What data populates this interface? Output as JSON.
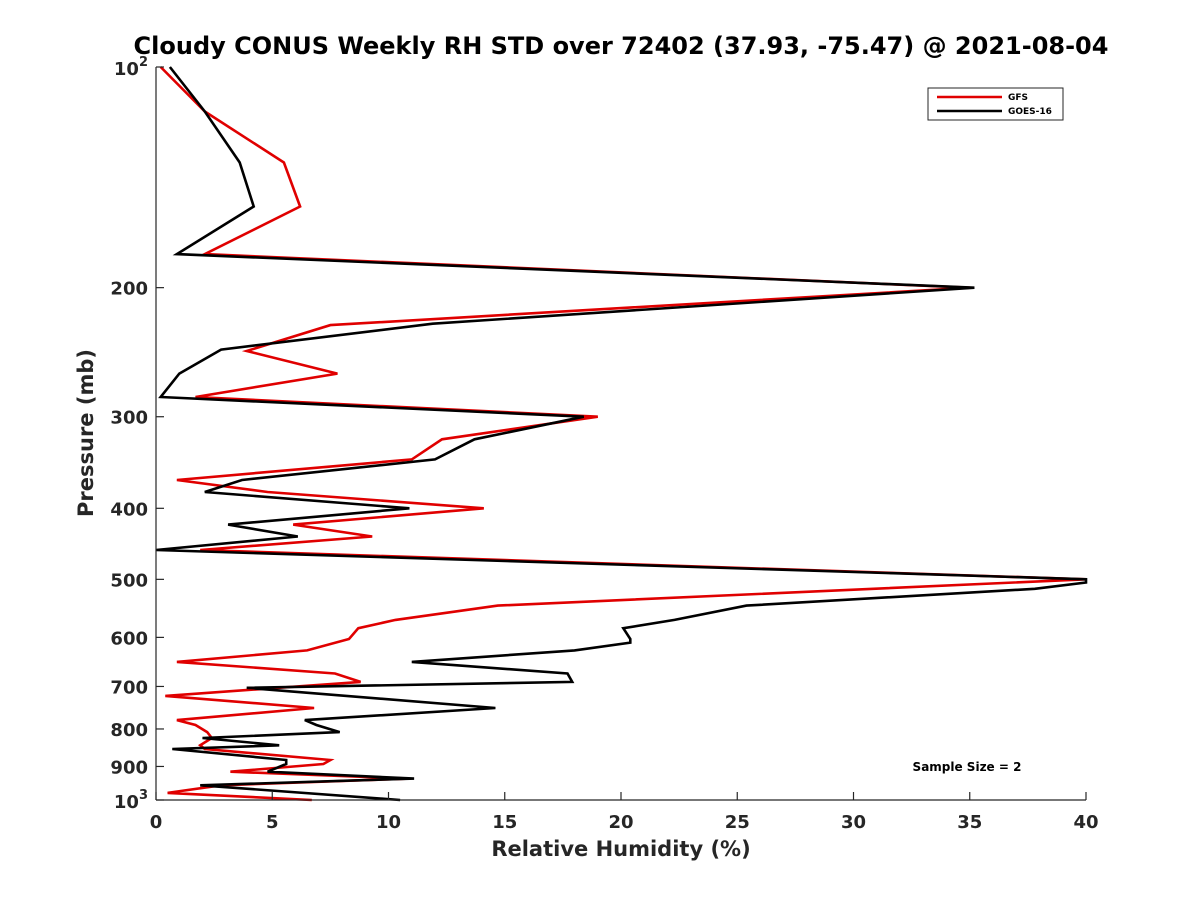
{
  "chart_data": {
    "type": "line",
    "title": "Cloudy CONUS Weekly RH STD over 72402 (37.93, -75.47) @ 2021-08-04",
    "xlabel": "Relative Humidity (%)",
    "ylabel": "Pressure (mb)",
    "xlim": [
      0,
      40
    ],
    "ylim": [
      100,
      1000
    ],
    "yscale": "log",
    "y_reversed": true,
    "grid": false,
    "legend_position": "top-right",
    "x_ticks": [
      0,
      5,
      10,
      15,
      20,
      25,
      30,
      35,
      40
    ],
    "x_tick_labels": [
      "0",
      "5",
      "10",
      "15",
      "20",
      "25",
      "30",
      "35",
      "40"
    ],
    "y_ticks": [
      200,
      300,
      400,
      500,
      600,
      700,
      800,
      900
    ],
    "y_tick_labels": [
      "200",
      "300",
      "400",
      "500",
      "600",
      "700",
      "800",
      "900"
    ],
    "y_power_ticks": [
      {
        "value": 100,
        "base": "10",
        "exp": "2"
      },
      {
        "value": 1000,
        "base": "10",
        "exp": "3"
      }
    ],
    "annotation": "Sample Size = 2",
    "series": [
      {
        "name": "GFS",
        "color": "#e00000",
        "points": [
          [
            0.2,
            100
          ],
          [
            2.1,
            115
          ],
          [
            5.5,
            135
          ],
          [
            6.2,
            155
          ],
          [
            2.1,
            180
          ],
          [
            35.0,
            200
          ],
          [
            7.5,
            225
          ],
          [
            3.9,
            244
          ],
          [
            7.8,
            262
          ],
          [
            1.7,
            282
          ],
          [
            19.0,
            300
          ],
          [
            12.3,
            322
          ],
          [
            11.0,
            343
          ],
          [
            0.9,
            366
          ],
          [
            4.8,
            380
          ],
          [
            14.1,
            400
          ],
          [
            5.9,
            421
          ],
          [
            9.3,
            437
          ],
          [
            1.9,
            456
          ],
          [
            40.0,
            500
          ],
          [
            14.7,
            543
          ],
          [
            10.3,
            568
          ],
          [
            8.7,
            583
          ],
          [
            8.3,
            603
          ],
          [
            6.5,
            625
          ],
          [
            0.9,
            648
          ],
          [
            7.7,
            672
          ],
          [
            8.8,
            690
          ],
          [
            0.4,
            721
          ],
          [
            6.8,
            749
          ],
          [
            0.9,
            778
          ],
          [
            1.7,
            790
          ],
          [
            2.2,
            808
          ],
          [
            2.4,
            823
          ],
          [
            1.9,
            842
          ],
          [
            2.1,
            852
          ],
          [
            7.5,
            882
          ],
          [
            7.2,
            893
          ],
          [
            3.2,
            915
          ],
          [
            10.9,
            935
          ],
          [
            2.8,
            955
          ],
          [
            0.5,
            978
          ],
          [
            6.7,
            1000
          ]
        ]
      },
      {
        "name": "GOES-16",
        "color": "#000000",
        "points": [
          [
            0.6,
            100
          ],
          [
            2.1,
            115
          ],
          [
            3.6,
            135
          ],
          [
            4.2,
            155
          ],
          [
            0.9,
            180
          ],
          [
            35.2,
            200
          ],
          [
            11.9,
            224
          ],
          [
            2.8,
            243
          ],
          [
            1.0,
            262
          ],
          [
            0.2,
            282
          ],
          [
            18.4,
            300
          ],
          [
            13.7,
            322
          ],
          [
            12.0,
            343
          ],
          [
            3.7,
            366
          ],
          [
            2.1,
            380
          ],
          [
            10.9,
            400
          ],
          [
            3.1,
            421
          ],
          [
            6.1,
            437
          ],
          [
            0.0,
            456
          ],
          [
            40.0,
            500
          ],
          [
            40.0,
            505
          ],
          [
            37.8,
            515
          ],
          [
            25.4,
            543
          ],
          [
            22.3,
            568
          ],
          [
            20.1,
            583
          ],
          [
            20.4,
            603
          ],
          [
            20.4,
            610
          ],
          [
            18.0,
            625
          ],
          [
            11.0,
            648
          ],
          [
            17.7,
            672
          ],
          [
            17.9,
            690
          ],
          [
            3.9,
            703
          ],
          [
            14.6,
            749
          ],
          [
            6.4,
            778
          ],
          [
            6.9,
            790
          ],
          [
            7.9,
            808
          ],
          [
            2.0,
            823
          ],
          [
            5.3,
            842
          ],
          [
            0.7,
            852
          ],
          [
            5.6,
            882
          ],
          [
            5.6,
            893
          ],
          [
            4.8,
            915
          ],
          [
            11.1,
            935
          ],
          [
            1.9,
            955
          ],
          [
            10.5,
            1000
          ]
        ]
      }
    ]
  }
}
